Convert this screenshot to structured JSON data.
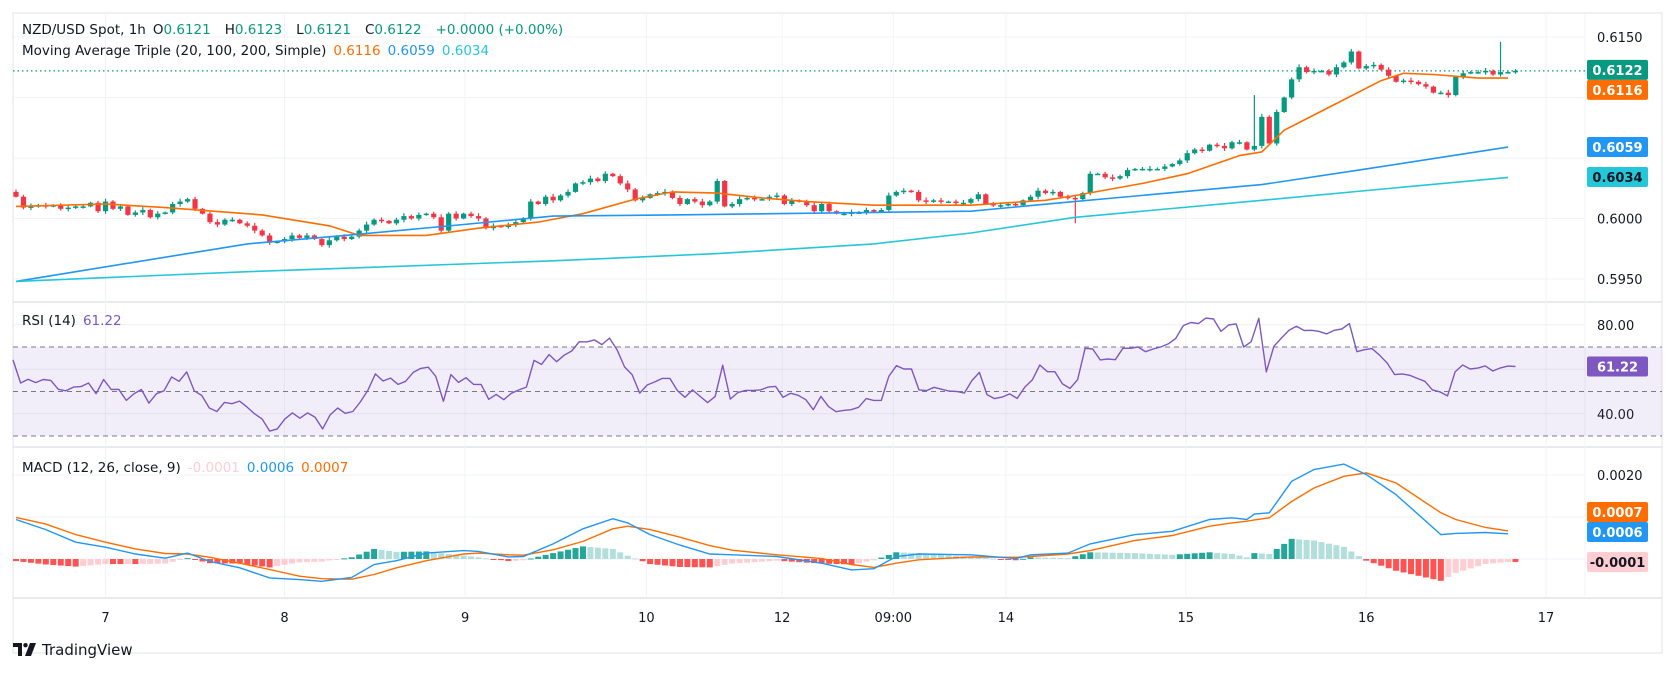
{
  "header": {
    "symbol": "NZD/USD Spot, 1h",
    "open_label": "O",
    "open": "0.6121",
    "high_label": "H",
    "high": "0.6123",
    "low_label": "L",
    "low": "0.6121",
    "close_label": "C",
    "close": "0.6122",
    "change": "+0.0000 (+0.00%)",
    "ma_title": "Moving Average Triple (20, 100, 200, Simple)",
    "ma20": "0.6116",
    "ma100": "0.6059",
    "ma200": "0.6034"
  },
  "rsi_header": {
    "title": "RSI (14)",
    "value": "61.22"
  },
  "macd_header": {
    "title": "MACD (12, 26, close, 9)",
    "histogram": "-0.0001",
    "macd": "0.0006",
    "signal": "0.0007"
  },
  "brand": {
    "name": "TradingView"
  },
  "colors": {
    "up": "#089981",
    "down": "#F23645",
    "ma20": "#FF6D00",
    "ma100": "#2196F3",
    "ma200": "#26C6DA",
    "rsi": "#7E57C2",
    "macd": "#2196F3",
    "signal": "#FF6D00",
    "hist_up_strong": "#26A69A",
    "hist_up_weak": "#B2DFDB",
    "hist_down_strong": "#FF5252",
    "hist_down_weak": "#FFCDD2"
  },
  "chart_data": [
    {
      "type": "candlestick",
      "title": "NZD/USD Spot, 1h",
      "y_ticks": [
        "0.6150",
        "0.6000",
        "0.5950"
      ],
      "ylim": [
        0.5945,
        0.6155
      ],
      "x_ticks": [
        {
          "label": "7",
          "bar": 12
        },
        {
          "label": "8",
          "bar": 36
        },
        {
          "label": "9",
          "bar": 60.2
        },
        {
          "label": "10",
          "bar": 84.5
        },
        {
          "label": "12",
          "bar": 102.7
        },
        {
          "label": "09:00",
          "bar": 117.6
        },
        {
          "label": "14",
          "bar": 132.7
        },
        {
          "label": "15",
          "bar": 156.8
        },
        {
          "label": "16",
          "bar": 181
        },
        {
          "label": "17",
          "bar": 205.1
        }
      ],
      "first_open": 0.6022,
      "closes": [
        0.6018,
        0.6009,
        0.601,
        0.6011,
        0.601,
        0.6011,
        0.6008,
        0.6009,
        0.601,
        0.601,
        0.6013,
        0.6006,
        0.6014,
        0.6008,
        0.601,
        0.6003,
        0.6005,
        0.6007,
        0.6001,
        0.6004,
        0.6005,
        0.6012,
        0.6014,
        0.6016,
        0.6008,
        0.6004,
        0.5997,
        0.5995,
        0.5999,
        0.5999,
        0.5996,
        0.5994,
        0.599,
        0.5986,
        0.598,
        0.5981,
        0.5983,
        0.5986,
        0.5984,
        0.5986,
        0.5983,
        0.5978,
        0.5982,
        0.5985,
        0.5983,
        0.5985,
        0.599,
        0.5995,
        0.5999,
        0.5998,
        0.5996,
        0.5999,
        0.6002,
        0.6,
        0.6003,
        0.6004,
        0.6001,
        0.599,
        0.6004,
        0.6,
        0.6004,
        0.6002,
        0.6,
        0.5992,
        0.5994,
        0.5993,
        0.5995,
        0.5997,
        0.6,
        0.6014,
        0.6012,
        0.6018,
        0.6015,
        0.6019,
        0.6022,
        0.6029,
        0.603,
        0.6033,
        0.6031,
        0.6037,
        0.6035,
        0.6029,
        0.6024,
        0.6015,
        0.6017,
        0.602,
        0.6021,
        0.6022,
        0.6017,
        0.6012,
        0.6016,
        0.6014,
        0.6011,
        0.6014,
        0.6031,
        0.601,
        0.6012,
        0.6016,
        0.6017,
        0.6016,
        0.6016,
        0.6018,
        0.6019,
        0.6012,
        0.6015,
        0.6014,
        0.6011,
        0.6006,
        0.6012,
        0.6006,
        0.6004,
        0.6004,
        0.6005,
        0.6005,
        0.6007,
        0.6006,
        0.6007,
        0.6019,
        0.6022,
        0.6023,
        0.6022,
        0.6015,
        0.6014,
        0.6015,
        0.6014,
        0.6014,
        0.6013,
        0.6013,
        0.6016,
        0.602,
        0.6012,
        0.6011,
        0.6011,
        0.6012,
        0.6011,
        0.6015,
        0.6018,
        0.6023,
        0.6021,
        0.6022,
        0.6018,
        0.6017,
        0.6016,
        0.6021,
        0.6037,
        0.6037,
        0.6034,
        0.6033,
        0.6035,
        0.604,
        0.6041,
        0.6041,
        0.6041,
        0.6041,
        0.6043,
        0.6045,
        0.6048,
        0.6054,
        0.6057,
        0.6056,
        0.6061,
        0.606,
        0.6058,
        0.6063,
        0.6063,
        0.6057,
        0.606,
        0.6084,
        0.6062,
        0.6088,
        0.61,
        0.6115,
        0.6125,
        0.6121,
        0.6122,
        0.6122,
        0.6119,
        0.6125,
        0.6129,
        0.6138,
        0.6124,
        0.6126,
        0.6127,
        0.6123,
        0.6118,
        0.6113,
        0.6114,
        0.6113,
        0.6111,
        0.6109,
        0.6104,
        0.6104,
        0.6102,
        0.6117,
        0.612,
        0.6121,
        0.6121,
        0.6122,
        0.6119,
        0.6121,
        0.6121,
        0.6122
      ],
      "wick_extremes": [
        {
          "bar": 0,
          "high": 0.6024
        },
        {
          "bar": 142,
          "low": 0.5996
        },
        {
          "bar": 166,
          "high": 0.6102
        },
        {
          "bar": 199,
          "high": 0.6146
        }
      ],
      "last_price": 0.6122,
      "moving_averages": [
        {
          "name": "SMA 20",
          "value_label": "0.6116",
          "value": 0.6116,
          "color": "#FF6D00",
          "points": [
            [
              0,
              0.601
            ],
            [
              12,
              0.6012
            ],
            [
              20,
              0.6009
            ],
            [
              33,
              0.6003
            ],
            [
              42,
              0.5994
            ],
            [
              46,
              0.5986
            ],
            [
              55,
              0.5986
            ],
            [
              62,
              0.5992
            ],
            [
              70,
              0.5997
            ],
            [
              76,
              0.6004
            ],
            [
              83,
              0.6016
            ],
            [
              88,
              0.6022
            ],
            [
              94,
              0.6021
            ],
            [
              100,
              0.6017
            ],
            [
              106,
              0.6014
            ],
            [
              115,
              0.6011
            ],
            [
              128,
              0.6011
            ],
            [
              138,
              0.6015
            ],
            [
              142,
              0.6019
            ],
            [
              151,
              0.6029
            ],
            [
              157,
              0.6037
            ],
            [
              164,
              0.6052
            ],
            [
              167,
              0.6055
            ],
            [
              170,
              0.6073
            ],
            [
              177,
              0.6095
            ],
            [
              183,
              0.6114
            ],
            [
              186,
              0.612
            ],
            [
              190,
              0.6119
            ],
            [
              196,
              0.6116
            ],
            [
              200,
              0.6116
            ]
          ]
        },
        {
          "name": "SMA 100",
          "value_label": "0.6059",
          "value": 0.6059,
          "color": "#2196F3",
          "points": [
            [
              0,
              0.5948
            ],
            [
              31,
              0.5979
            ],
            [
              46,
              0.5987
            ],
            [
              60,
              0.5995
            ],
            [
              72,
              0.6002
            ],
            [
              88,
              0.6003
            ],
            [
              115,
              0.6005
            ],
            [
              128,
              0.6006
            ],
            [
              140,
              0.6013
            ],
            [
              167,
              0.6028
            ],
            [
              180,
              0.604
            ],
            [
              200,
              0.6059
            ]
          ]
        },
        {
          "name": "SMA 200",
          "value_label": "0.6034",
          "value": 0.6034,
          "color": "#26C6DA",
          "points": [
            [
              0,
              0.5948
            ],
            [
              31,
              0.5956
            ],
            [
              72,
              0.5965
            ],
            [
              94,
              0.5971
            ],
            [
              115,
              0.5979
            ],
            [
              128,
              0.5988
            ],
            [
              142,
              0.6001
            ],
            [
              167,
              0.6015
            ],
            [
              200,
              0.6034
            ]
          ]
        }
      ]
    },
    {
      "type": "line",
      "title": "RSI (14)",
      "y_ticks": [
        "80.00",
        "40.00"
      ],
      "bands": {
        "upper": 70,
        "middle": 50,
        "lower": 30
      },
      "last_value": "61.22",
      "values": [
        64.2,
        53.8,
        55.5,
        54,
        55.4,
        55,
        51,
        50.3,
        52,
        52.2,
        53.8,
        49,
        55.4,
        50.9,
        51,
        46,
        48.9,
        50.9,
        44.8,
        49,
        50.3,
        56.5,
        54.6,
        58.8,
        50.3,
        48.2,
        42.6,
        41,
        45.1,
        44.5,
        45.7,
        43,
        40,
        37.6,
        32.2,
        33.2,
        37.6,
        40.4,
        38,
        40.4,
        38.5,
        33.2,
        39.5,
        42.6,
        40.2,
        41,
        45.3,
        50.6,
        57.9,
        54.7,
        56,
        53.2,
        54.6,
        58.6,
        60.4,
        60.9,
        56.8,
        45.6,
        57.6,
        54.1,
        56.2,
        53.2,
        53.2,
        46.5,
        48.7,
        46.3,
        49.2,
        50.7,
        52,
        64,
        62.2,
        66.6,
        63.4,
        66.3,
        68.2,
        72.4,
        72.3,
        73.2,
        71.1,
        74,
        68.8,
        61,
        57.6,
        49.3,
        52.9,
        54.3,
        55.9,
        55.9,
        50.4,
        47.4,
        50.7,
        47.8,
        45,
        47.8,
        61.8,
        46.6,
        49.5,
        50.5,
        50.5,
        50.7,
        52,
        52.3,
        47.4,
        49.2,
        48.3,
        46.3,
        41.8,
        47.8,
        43.3,
        40.9,
        41.5,
        41.8,
        42.9,
        46.8,
        46,
        46,
        56.8,
        61.6,
        60.1,
        60.1,
        50.7,
        50.4,
        51.9,
        51,
        50.2,
        50,
        49.3,
        54.9,
        58.6,
        48.6,
        46.8,
        47.5,
        48.9,
        46.9,
        51.9,
        55.2,
        61.9,
        58.9,
        58.9,
        53.4,
        51.4,
        55.3,
        69.4,
        69.1,
        64.2,
        64.6,
        64.3,
        69.4,
        69.4,
        70,
        67.9,
        69.1,
        70,
        71.4,
        73.8,
        79.6,
        81,
        80.5,
        83,
        82.6,
        77,
        79.9,
        80.4,
        70,
        72.4,
        82.9,
        58.8,
        70.3,
        74,
        77.5,
        79.3,
        77.4,
        77.5,
        77,
        75.9,
        77.5,
        78.1,
        80.5,
        67.9,
        68.8,
        69.3,
        66.3,
        62.8,
        57.6,
        57.9,
        57.3,
        55.9,
        54.6,
        50.7,
        49.8,
        48,
        58.8,
        61.9,
        60.1,
        60.5,
        61.5,
        59.2,
        60.6,
        61.4,
        61.22
      ]
    },
    {
      "type": "macd",
      "title": "MACD (12, 26, close, 9)",
      "y_ticks": [
        "0.0020"
      ],
      "last": {
        "histogram": "-0.0001",
        "macd": "0.0006",
        "signal": "0.0007"
      },
      "samples_bar_macd_signal": [
        [
          0,
          0.00094,
          0.00099
        ],
        [
          4,
          0.0007,
          0.00083
        ],
        [
          8,
          0.0004,
          0.00058
        ],
        [
          12,
          0.00028,
          0.0004
        ],
        [
          16,
          0.00012,
          0.00024
        ],
        [
          20,
          2e-05,
          0.00013
        ],
        [
          23,
          0.00014,
          0.00012
        ],
        [
          26,
          -6e-05,
          4e-05
        ],
        [
          30,
          -0.00021,
          -0.0001
        ],
        [
          34,
          -0.00045,
          -0.00025
        ],
        [
          38,
          -0.00049,
          -0.00041
        ],
        [
          41,
          -0.00053,
          -0.00047
        ],
        [
          45,
          -0.00044,
          -0.00048
        ],
        [
          48,
          -0.00013,
          -0.00037
        ],
        [
          51,
          -4e-05,
          -0.00021
        ],
        [
          55,
          0.00014,
          -4e-05
        ],
        [
          60,
          0.0002,
          0.00012
        ],
        [
          62,
          0.00018,
          0.00014
        ],
        [
          66,
          5e-05,
          0.0001
        ],
        [
          68,
          6e-05,
          9e-05
        ],
        [
          72,
          0.00036,
          0.00022
        ],
        [
          76,
          0.00072,
          0.00042
        ],
        [
          80,
          0.00096,
          0.00072
        ],
        [
          82,
          0.00086,
          0.00078
        ],
        [
          85,
          0.00058,
          0.0007
        ],
        [
          89,
          0.00033,
          0.00052
        ],
        [
          93,
          0.00012,
          0.00032
        ],
        [
          96,
          0.0001,
          0.00021
        ],
        [
          102,
          6e-05,
          0.0001
        ],
        [
          108,
          -0.0001,
          1e-05
        ],
        [
          112,
          -0.00026,
          -0.00013
        ],
        [
          115,
          -0.00023,
          -0.0002
        ],
        [
          118,
          6e-05,
          -0.0001
        ],
        [
          121,
          0.00012,
          -2e-05
        ],
        [
          128,
          0.0001,
          5e-05
        ],
        [
          134,
          1e-05,
          4e-05
        ],
        [
          136,
          0.0001,
          6e-05
        ],
        [
          141,
          0.00014,
          0.00012
        ],
        [
          144,
          0.00036,
          0.0002
        ],
        [
          150,
          0.00058,
          0.00044
        ],
        [
          155,
          0.00066,
          0.00056
        ],
        [
          160,
          0.00094,
          0.00078
        ],
        [
          163,
          0.00098,
          0.00086
        ],
        [
          165,
          0.00094,
          0.0009
        ],
        [
          166,
          0.00107,
          0.00093
        ],
        [
          168,
          0.0011,
          0.00098
        ],
        [
          171,
          0.00185,
          0.00137
        ],
        [
          174,
          0.00213,
          0.00169
        ],
        [
          178,
          0.00226,
          0.00197
        ],
        [
          181,
          0.00201,
          0.00205
        ],
        [
          185,
          0.00153,
          0.00181
        ],
        [
          191,
          0.00058,
          0.0011
        ],
        [
          193,
          0.00061,
          0.00094
        ],
        [
          197,
          0.00063,
          0.00075
        ],
        [
          200,
          0.0006,
          0.00067
        ]
      ]
    }
  ]
}
